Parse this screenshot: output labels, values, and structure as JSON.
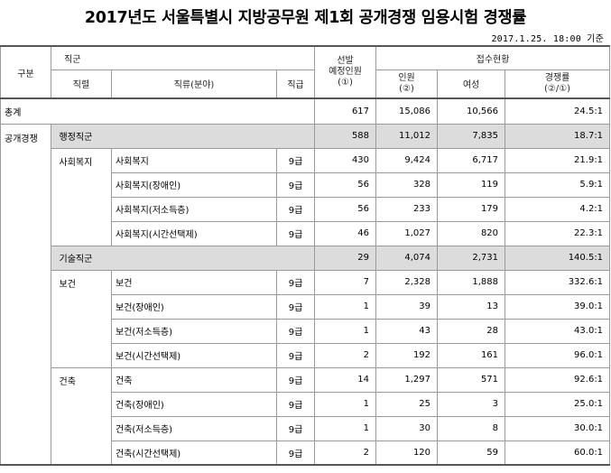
{
  "title": "2017년도 서울특별시 지방공무원 제1회 공개경쟁 임용시험 경쟁률",
  "date": "2017.1.25. 18:00 기준",
  "header": {
    "gubun": "구분",
    "jikgun": "직군",
    "jikryeol": "직렬",
    "jikryu": "직류(분야)",
    "jikgeup": "직급",
    "seonbal_line1": "선발",
    "seonbal_line2": "예정인원",
    "seonbal_line3": "(①)",
    "jeopsu": "접수현황",
    "inwon_line1": "인원",
    "inwon_line2": "(②)",
    "yeoseong": "여성",
    "rate_line1": "경쟁률",
    "rate_line2": "(②/①)"
  },
  "rows": {
    "total": {
      "label": "총계",
      "plan": "617",
      "applicants": "15,086",
      "female": "10,566",
      "rate": "24.5:1"
    },
    "open": {
      "label": "공개경쟁"
    },
    "admin": {
      "label": "행정직군",
      "plan": "588",
      "applicants": "11,012",
      "female": "7,835",
      "rate": "18.7:1"
    },
    "social": {
      "series": "사회복지",
      "items": [
        {
          "name": "사회복지",
          "grade": "9급",
          "plan": "430",
          "applicants": "9,424",
          "female": "6,717",
          "rate": "21.9:1"
        },
        {
          "name": "사회복지(장애인)",
          "grade": "9급",
          "plan": "56",
          "applicants": "328",
          "female": "119",
          "rate": "5.9:1"
        },
        {
          "name": "사회복지(저소득층)",
          "grade": "9급",
          "plan": "56",
          "applicants": "233",
          "female": "179",
          "rate": "4.2:1"
        },
        {
          "name": "사회복지(시간선택제)",
          "grade": "9급",
          "plan": "46",
          "applicants": "1,027",
          "female": "820",
          "rate": "22.3:1"
        }
      ]
    },
    "tech": {
      "label": "기술직군",
      "plan": "29",
      "applicants": "4,074",
      "female": "2,731",
      "rate": "140.5:1"
    },
    "health": {
      "series": "보건",
      "items": [
        {
          "name": "보건",
          "grade": "9급",
          "plan": "7",
          "applicants": "2,328",
          "female": "1,888",
          "rate": "332.6:1"
        },
        {
          "name": "보건(장애인)",
          "grade": "9급",
          "plan": "1",
          "applicants": "39",
          "female": "13",
          "rate": "39.0:1"
        },
        {
          "name": "보건(저소득층)",
          "grade": "9급",
          "plan": "1",
          "applicants": "43",
          "female": "28",
          "rate": "43.0:1"
        },
        {
          "name": "보건(시간선택제)",
          "grade": "9급",
          "plan": "2",
          "applicants": "192",
          "female": "161",
          "rate": "96.0:1"
        }
      ]
    },
    "arch": {
      "series": "건축",
      "items": [
        {
          "name": "건축",
          "grade": "9급",
          "plan": "14",
          "applicants": "1,297",
          "female": "571",
          "rate": "92.6:1"
        },
        {
          "name": "건축(장애인)",
          "grade": "9급",
          "plan": "1",
          "applicants": "25",
          "female": "3",
          "rate": "25.0:1"
        },
        {
          "name": "건축(저소득층)",
          "grade": "9급",
          "plan": "1",
          "applicants": "30",
          "female": "8",
          "rate": "30.0:1"
        },
        {
          "name": "건축(시간선택제)",
          "grade": "9급",
          "plan": "2",
          "applicants": "120",
          "female": "59",
          "rate": "60.0:1"
        }
      ]
    }
  }
}
